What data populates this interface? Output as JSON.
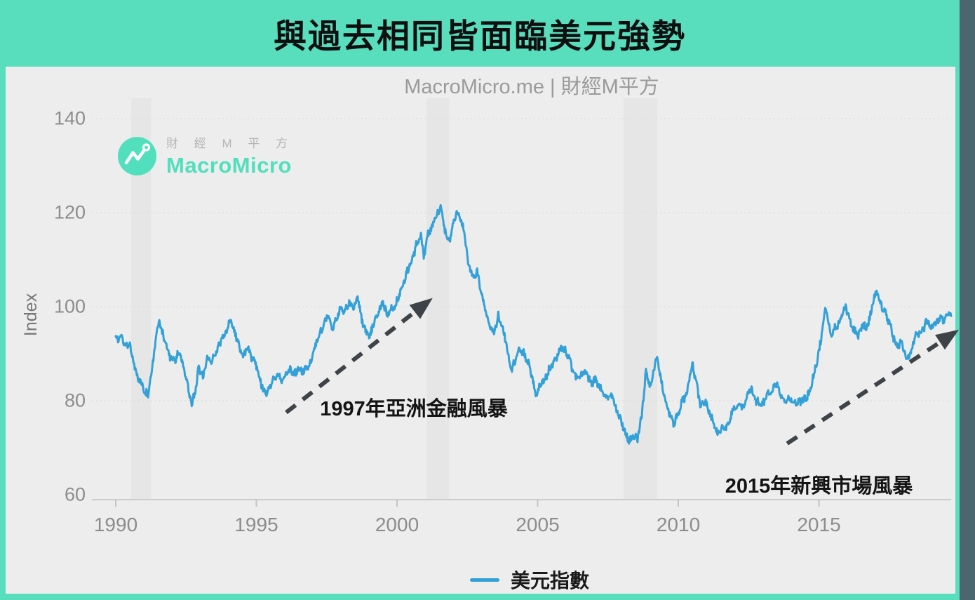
{
  "page": {
    "teal_background": "#58DDBD",
    "panel_background": "#EDEDED",
    "scrollbar_color": "#4C6670"
  },
  "logo": {
    "cn_text": "財 經 M 平 方",
    "en_text": "MacroMicro",
    "brand_color": "#52DFBD"
  },
  "legend": {
    "label": "美元指數",
    "swatch_color": "#33A1D7"
  },
  "chart_data": {
    "type": "line",
    "title": "與過去相同皆面臨美元強勢",
    "subtitle": "MacroMicro.me | 財經M平方",
    "xlabel": "",
    "ylabel": "Index",
    "xlim": [
      1989.2,
      2019.9
    ],
    "ylim": [
      58,
      151
    ],
    "x_ticks": [
      1990,
      1995,
      2000,
      2005,
      2010,
      2015
    ],
    "y_ticks": [
      60,
      80,
      100,
      120,
      140
    ],
    "grid": "horizontal-dotted",
    "legend_position": "bottom-center",
    "line_color": "#33A1D7",
    "recession_band_color": "#E6E6E6",
    "recession_bands": [
      [
        1990.55,
        1991.25
      ],
      [
        2001.05,
        2001.85
      ],
      [
        2008.05,
        2009.25
      ]
    ],
    "annotations": [
      {
        "text": "1997年亞洲金融風暴",
        "x": 2000.6,
        "y": 78.7
      },
      {
        "text": "2015年新興市場風暴",
        "x": 2015.0,
        "y": 62.2
      }
    ],
    "arrows": [
      {
        "x1": 1996.06,
        "y1": 77.5,
        "x2": 2001.15,
        "y2": 101.3
      },
      {
        "x1": 2013.87,
        "y1": 70.9,
        "x2": 2019.85,
        "y2": 94.6
      }
    ],
    "arrow_color": "#3E4347",
    "series": [
      {
        "name": "美元指數",
        "color": "#33A1D7",
        "points": [
          [
            1990.0,
            94.0
          ],
          [
            1990.1,
            92.5
          ],
          [
            1990.2,
            93.5
          ],
          [
            1990.35,
            91.5
          ],
          [
            1990.5,
            92.0
          ],
          [
            1990.6,
            89.0
          ],
          [
            1990.75,
            85.5
          ],
          [
            1990.9,
            84.0
          ],
          [
            1991.05,
            82.0
          ],
          [
            1991.15,
            81.0
          ],
          [
            1991.3,
            87.0
          ],
          [
            1991.45,
            94.0
          ],
          [
            1991.55,
            97.0
          ],
          [
            1991.65,
            94.5
          ],
          [
            1991.8,
            92.0
          ],
          [
            1991.95,
            89.0
          ],
          [
            1992.1,
            88.5
          ],
          [
            1992.25,
            90.5
          ],
          [
            1992.4,
            87.0
          ],
          [
            1992.55,
            83.5
          ],
          [
            1992.7,
            79.0
          ],
          [
            1992.85,
            83.0
          ],
          [
            1992.95,
            87.0
          ],
          [
            1993.1,
            85.0
          ],
          [
            1993.25,
            89.5
          ],
          [
            1993.4,
            88.0
          ],
          [
            1993.55,
            90.0
          ],
          [
            1993.7,
            92.5
          ],
          [
            1993.85,
            93.5
          ],
          [
            1994.0,
            96.0
          ],
          [
            1994.1,
            97.0
          ],
          [
            1994.25,
            94.5
          ],
          [
            1994.4,
            91.0
          ],
          [
            1994.55,
            89.5
          ],
          [
            1994.7,
            91.5
          ],
          [
            1994.85,
            89.0
          ],
          [
            1995.0,
            87.5
          ],
          [
            1995.15,
            84.0
          ],
          [
            1995.3,
            81.5
          ],
          [
            1995.45,
            82.5
          ],
          [
            1995.6,
            84.5
          ],
          [
            1995.75,
            85.5
          ],
          [
            1995.9,
            84.0
          ],
          [
            1996.05,
            85.5
          ],
          [
            1996.2,
            86.5
          ],
          [
            1996.35,
            85.5
          ],
          [
            1996.5,
            87.0
          ],
          [
            1996.65,
            86.0
          ],
          [
            1996.8,
            87.0
          ],
          [
            1996.95,
            88.0
          ],
          [
            1997.1,
            92.0
          ],
          [
            1997.25,
            94.0
          ],
          [
            1997.4,
            96.5
          ],
          [
            1997.55,
            98.0
          ],
          [
            1997.7,
            95.5
          ],
          [
            1997.85,
            97.5
          ],
          [
            1998.0,
            100.0
          ],
          [
            1998.15,
            99.0
          ],
          [
            1998.3,
            101.0
          ],
          [
            1998.45,
            100.0
          ],
          [
            1998.6,
            102.0
          ],
          [
            1998.75,
            97.0
          ],
          [
            1998.9,
            94.5
          ],
          [
            1999.05,
            94.0
          ],
          [
            1999.2,
            97.0
          ],
          [
            1999.35,
            99.0
          ],
          [
            1999.5,
            101.0
          ],
          [
            1999.65,
            98.0
          ],
          [
            1999.8,
            99.5
          ],
          [
            1999.95,
            100.5
          ],
          [
            2000.1,
            103.0
          ],
          [
            2000.25,
            105.5
          ],
          [
            2000.4,
            108.0
          ],
          [
            2000.55,
            110.0
          ],
          [
            2000.7,
            113.5
          ],
          [
            2000.85,
            115.0
          ],
          [
            2000.95,
            110.5
          ],
          [
            2001.1,
            115.5
          ],
          [
            2001.25,
            117.0
          ],
          [
            2001.4,
            119.5
          ],
          [
            2001.55,
            121.0
          ],
          [
            2001.7,
            116.5
          ],
          [
            2001.85,
            113.5
          ],
          [
            2002.0,
            118.0
          ],
          [
            2002.1,
            120.0
          ],
          [
            2002.25,
            119.0
          ],
          [
            2002.4,
            116.0
          ],
          [
            2002.55,
            108.5
          ],
          [
            2002.7,
            106.5
          ],
          [
            2002.85,
            107.5
          ],
          [
            2003.0,
            102.5
          ],
          [
            2003.15,
            99.5
          ],
          [
            2003.3,
            96.0
          ],
          [
            2003.45,
            94.5
          ],
          [
            2003.6,
            98.0
          ],
          [
            2003.75,
            95.5
          ],
          [
            2003.9,
            92.0
          ],
          [
            2004.05,
            86.5
          ],
          [
            2004.2,
            88.5
          ],
          [
            2004.35,
            91.0
          ],
          [
            2004.5,
            90.0
          ],
          [
            2004.65,
            88.5
          ],
          [
            2004.8,
            85.0
          ],
          [
            2004.95,
            81.0
          ],
          [
            2005.1,
            83.5
          ],
          [
            2005.25,
            84.5
          ],
          [
            2005.4,
            86.5
          ],
          [
            2005.55,
            88.0
          ],
          [
            2005.7,
            89.5
          ],
          [
            2005.85,
            91.5
          ],
          [
            2006.0,
            90.5
          ],
          [
            2006.15,
            88.5
          ],
          [
            2006.3,
            85.5
          ],
          [
            2006.45,
            84.5
          ],
          [
            2006.6,
            86.0
          ],
          [
            2006.75,
            85.5
          ],
          [
            2006.9,
            83.5
          ],
          [
            2007.05,
            84.5
          ],
          [
            2007.2,
            83.0
          ],
          [
            2007.35,
            81.5
          ],
          [
            2007.5,
            80.5
          ],
          [
            2007.65,
            81.0
          ],
          [
            2007.8,
            78.0
          ],
          [
            2007.95,
            76.0
          ],
          [
            2008.1,
            73.5
          ],
          [
            2008.25,
            71.5
          ],
          [
            2008.4,
            72.5
          ],
          [
            2008.55,
            72.0
          ],
          [
            2008.7,
            77.0
          ],
          [
            2008.85,
            86.0
          ],
          [
            2009.0,
            83.0
          ],
          [
            2009.15,
            87.0
          ],
          [
            2009.25,
            89.0
          ],
          [
            2009.4,
            84.0
          ],
          [
            2009.55,
            80.0
          ],
          [
            2009.7,
            77.0
          ],
          [
            2009.85,
            75.0
          ],
          [
            2010.0,
            77.5
          ],
          [
            2010.15,
            80.0
          ],
          [
            2010.3,
            81.5
          ],
          [
            2010.45,
            86.5
          ],
          [
            2010.5,
            88.0
          ],
          [
            2010.65,
            83.5
          ],
          [
            2010.8,
            78.5
          ],
          [
            2010.95,
            80.0
          ],
          [
            2011.1,
            77.5
          ],
          [
            2011.25,
            75.5
          ],
          [
            2011.4,
            73.0
          ],
          [
            2011.55,
            74.5
          ],
          [
            2011.7,
            74.0
          ],
          [
            2011.85,
            76.5
          ],
          [
            2012.0,
            78.5
          ],
          [
            2012.15,
            79.5
          ],
          [
            2012.3,
            78.5
          ],
          [
            2012.45,
            81.5
          ],
          [
            2012.6,
            82.5
          ],
          [
            2012.75,
            80.0
          ],
          [
            2012.9,
            79.5
          ],
          [
            2013.05,
            79.5
          ],
          [
            2013.2,
            81.5
          ],
          [
            2013.35,
            82.5
          ],
          [
            2013.5,
            84.0
          ],
          [
            2013.65,
            81.0
          ],
          [
            2013.8,
            80.0
          ],
          [
            2013.95,
            80.5
          ],
          [
            2014.1,
            80.0
          ],
          [
            2014.25,
            79.5
          ],
          [
            2014.4,
            80.0
          ],
          [
            2014.55,
            80.5
          ],
          [
            2014.7,
            82.5
          ],
          [
            2014.85,
            86.5
          ],
          [
            2015.0,
            90.5
          ],
          [
            2015.1,
            94.0
          ],
          [
            2015.2,
            98.0
          ],
          [
            2015.25,
            100.0
          ],
          [
            2015.35,
            96.5
          ],
          [
            2015.45,
            93.5
          ],
          [
            2015.55,
            95.5
          ],
          [
            2015.7,
            96.5
          ],
          [
            2015.85,
            99.0
          ],
          [
            2015.95,
            100.0
          ],
          [
            2016.1,
            97.0
          ],
          [
            2016.25,
            95.0
          ],
          [
            2016.4,
            94.0
          ],
          [
            2016.55,
            96.0
          ],
          [
            2016.7,
            95.5
          ],
          [
            2016.85,
            98.5
          ],
          [
            2016.95,
            102.0
          ],
          [
            2017.05,
            103.0
          ],
          [
            2017.2,
            100.5
          ],
          [
            2017.35,
            99.0
          ],
          [
            2017.5,
            96.5
          ],
          [
            2017.65,
            93.5
          ],
          [
            2017.8,
            91.5
          ],
          [
            2017.95,
            92.5
          ],
          [
            2018.1,
            89.0
          ],
          [
            2018.25,
            90.0
          ],
          [
            2018.4,
            93.5
          ],
          [
            2018.55,
            94.5
          ],
          [
            2018.7,
            95.0
          ],
          [
            2018.85,
            97.0
          ],
          [
            2019.0,
            95.5
          ],
          [
            2019.15,
            96.5
          ],
          [
            2019.3,
            97.5
          ],
          [
            2019.45,
            97.0
          ],
          [
            2019.6,
            98.5
          ],
          [
            2019.7,
            98.0
          ]
        ]
      }
    ]
  }
}
